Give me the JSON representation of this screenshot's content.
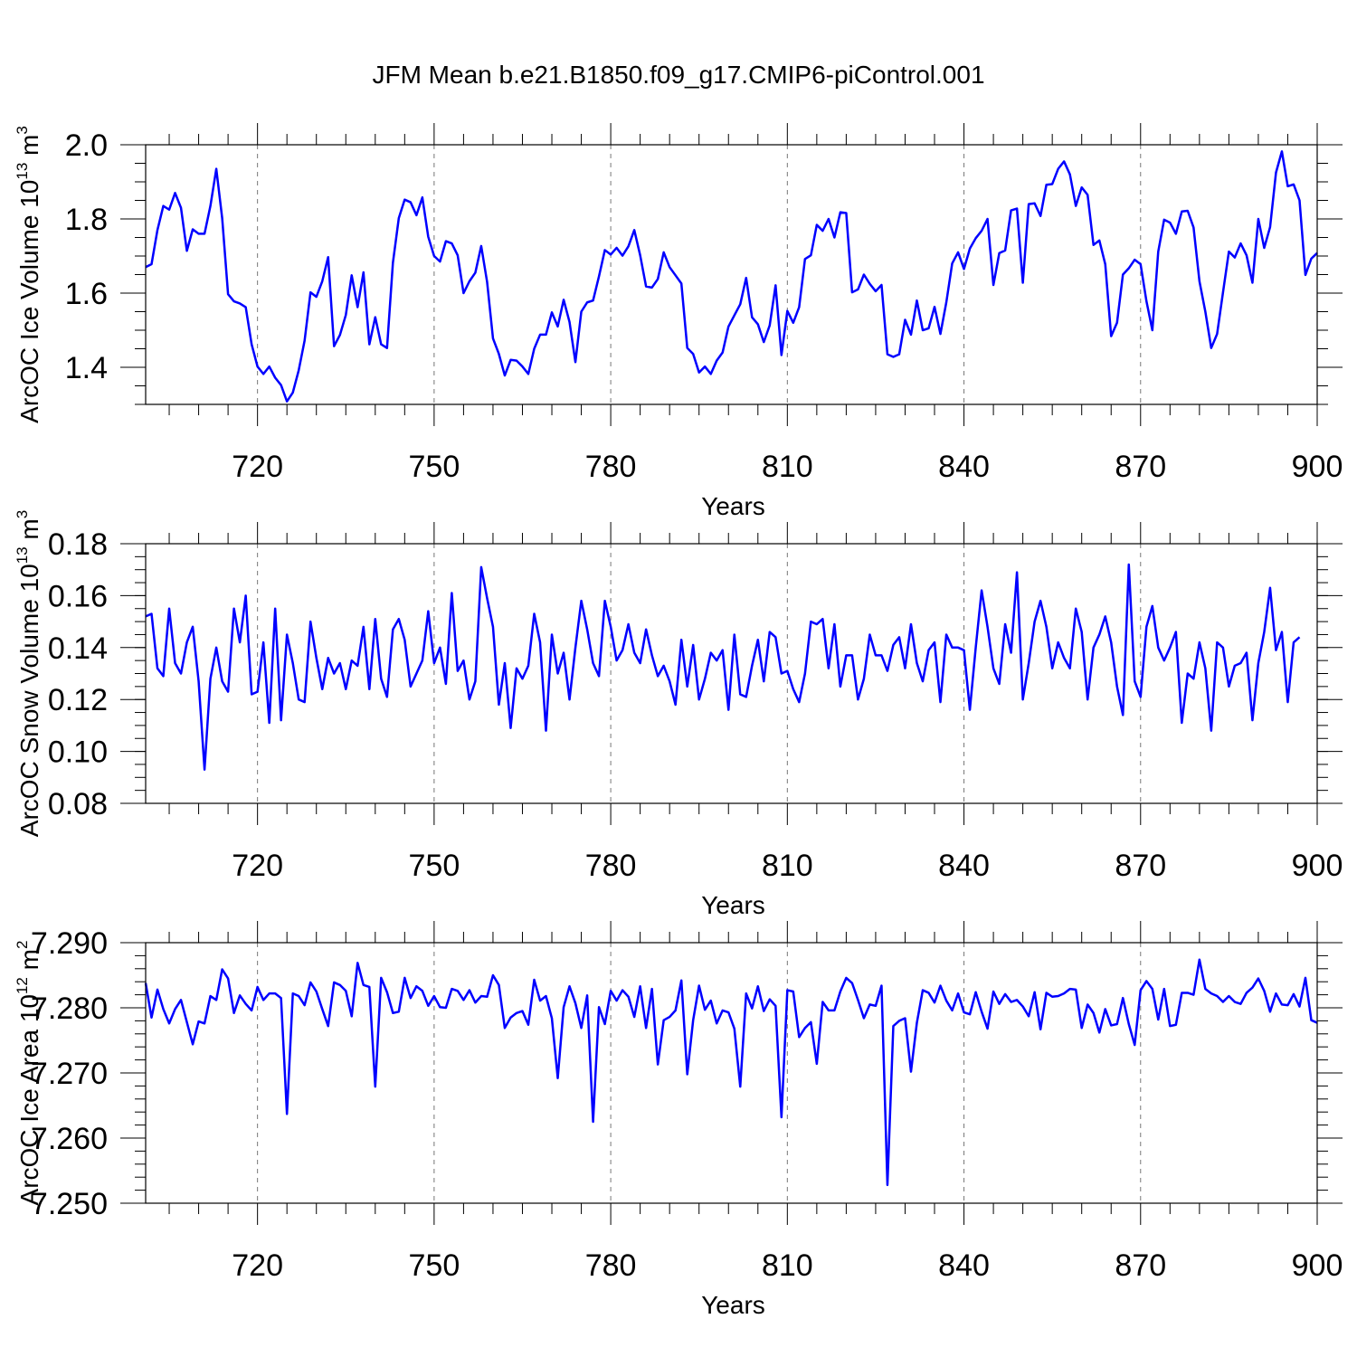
{
  "title": "JFM Mean b.e21.B1850.f09_g17.CMIP6-piControl.001",
  "colors": {
    "line": "#0000ff",
    "axis": "#000000",
    "grid": "#777777"
  },
  "chart_data": [
    {
      "type": "line",
      "xlabel": "Years",
      "ylabel": {
        "main": "ArcOC Ice Volume 10",
        "sup1": "13",
        "unit": " m",
        "sup2": "3"
      },
      "xlim": [
        701,
        900
      ],
      "ylim": [
        1.3,
        2.0
      ],
      "x_ticks": [
        720,
        750,
        780,
        810,
        840,
        870,
        900
      ],
      "x_tick_labels": [
        "720",
        "750",
        "780",
        "810",
        "840",
        "870",
        "900"
      ],
      "y_ticks": [
        1.4,
        1.6,
        1.8,
        2.0
      ],
      "y_tick_labels": [
        "1.4",
        "1.6",
        "1.8",
        "2.0"
      ],
      "y_minor_step": 0.05,
      "x_start": 701,
      "series": [
        {
          "values": [
            1.67,
            1.678,
            1.77,
            1.835,
            1.825,
            1.87,
            1.83,
            1.714,
            1.772,
            1.76,
            1.76,
            1.835,
            1.935,
            1.802,
            1.597,
            1.578,
            1.572,
            1.562,
            1.462,
            1.402,
            1.382,
            1.402,
            1.372,
            1.352,
            1.308,
            1.332,
            1.392,
            1.472,
            1.602,
            1.59,
            1.632,
            1.697,
            1.457,
            1.487,
            1.541,
            1.648,
            1.562,
            1.656,
            1.462,
            1.535,
            1.462,
            1.452,
            1.682,
            1.802,
            1.852,
            1.845,
            1.81,
            1.858,
            1.752,
            1.7,
            1.685,
            1.74,
            1.734,
            1.702,
            1.6,
            1.632,
            1.655,
            1.727,
            1.63,
            1.478,
            1.436,
            1.378,
            1.42,
            1.418,
            1.402,
            1.382,
            1.45,
            1.488,
            1.488,
            1.548,
            1.51,
            1.582,
            1.522,
            1.414,
            1.55,
            1.575,
            1.58,
            1.645,
            1.716,
            1.704,
            1.722,
            1.701,
            1.726,
            1.77,
            1.702,
            1.618,
            1.615,
            1.638,
            1.71,
            1.67,
            1.648,
            1.626,
            1.452,
            1.436,
            1.386,
            1.402,
            1.382,
            1.418,
            1.44,
            1.51,
            1.54,
            1.57,
            1.641,
            1.535,
            1.516,
            1.468,
            1.513,
            1.621,
            1.433,
            1.552,
            1.52,
            1.562,
            1.692,
            1.702,
            1.784,
            1.768,
            1.8,
            1.75,
            1.818,
            1.816,
            1.602,
            1.61,
            1.65,
            1.625,
            1.605,
            1.622,
            1.435,
            1.428,
            1.435,
            1.528,
            1.488,
            1.58,
            1.5,
            1.505,
            1.563,
            1.49,
            1.575,
            1.68,
            1.71,
            1.665,
            1.72,
            1.748,
            1.768,
            1.8,
            1.622,
            1.708,
            1.715,
            1.823,
            1.828,
            1.628,
            1.84,
            1.842,
            1.808,
            1.892,
            1.894,
            1.935,
            1.955,
            1.92,
            1.835,
            1.885,
            1.865,
            1.73,
            1.742,
            1.678,
            1.484,
            1.52,
            1.65,
            1.667,
            1.69,
            1.678,
            1.578,
            1.5,
            1.712,
            1.798,
            1.79,
            1.76,
            1.82,
            1.822,
            1.777,
            1.632,
            1.55,
            1.452,
            1.49,
            1.602,
            1.712,
            1.696,
            1.734,
            1.702,
            1.628,
            1.8,
            1.722,
            1.778,
            1.925,
            1.982,
            1.888,
            1.893,
            1.85,
            1.649,
            1.693,
            1.708
          ]
        }
      ]
    },
    {
      "type": "line",
      "xlabel": "Years",
      "ylabel": {
        "main": "ArcOC Snow Volume 10",
        "sup1": "13",
        "unit": " m",
        "sup2": "3"
      },
      "xlim": [
        701,
        900
      ],
      "ylim": [
        0.08,
        0.18
      ],
      "x_ticks": [
        720,
        750,
        780,
        810,
        840,
        870,
        900
      ],
      "x_tick_labels": [
        "720",
        "750",
        "780",
        "810",
        "840",
        "870",
        "900"
      ],
      "y_ticks": [
        0.08,
        0.1,
        0.12,
        0.14,
        0.16,
        0.18
      ],
      "y_tick_labels": [
        "0.08",
        "0.10",
        "0.12",
        "0.14",
        "0.16",
        "0.18"
      ],
      "y_minor_step": 0.005,
      "x_start": 701,
      "series": [
        {
          "values": [
            0.152,
            0.153,
            0.132,
            0.129,
            0.155,
            0.134,
            0.13,
            0.142,
            0.148,
            0.127,
            0.093,
            0.128,
            0.14,
            0.127,
            0.123,
            0.155,
            0.142,
            0.16,
            0.122,
            0.123,
            0.142,
            0.111,
            0.155,
            0.112,
            0.145,
            0.134,
            0.12,
            0.119,
            0.15,
            0.136,
            0.124,
            0.136,
            0.13,
            0.134,
            0.124,
            0.135,
            0.133,
            0.148,
            0.124,
            0.151,
            0.128,
            0.121,
            0.147,
            0.151,
            0.143,
            0.125,
            0.13,
            0.135,
            0.154,
            0.134,
            0.14,
            0.126,
            0.161,
            0.131,
            0.135,
            0.12,
            0.127,
            0.171,
            0.159,
            0.148,
            0.118,
            0.134,
            0.109,
            0.132,
            0.128,
            0.133,
            0.153,
            0.142,
            0.108,
            0.145,
            0.13,
            0.138,
            0.12,
            0.14,
            0.158,
            0.147,
            0.134,
            0.129,
            0.158,
            0.148,
            0.135,
            0.139,
            0.149,
            0.138,
            0.134,
            0.147,
            0.137,
            0.129,
            0.133,
            0.127,
            0.118,
            0.143,
            0.125,
            0.141,
            0.12,
            0.128,
            0.138,
            0.135,
            0.139,
            0.116,
            0.145,
            0.122,
            0.121,
            0.133,
            0.143,
            0.127,
            0.146,
            0.144,
            0.13,
            0.131,
            0.124,
            0.119,
            0.13,
            0.15,
            0.149,
            0.151,
            0.132,
            0.149,
            0.125,
            0.137,
            0.137,
            0.12,
            0.128,
            0.145,
            0.137,
            0.137,
            0.131,
            0.141,
            0.144,
            0.132,
            0.149,
            0.134,
            0.127,
            0.139,
            0.142,
            0.119,
            0.145,
            0.14,
            0.14,
            0.139,
            0.116,
            0.14,
            0.162,
            0.148,
            0.132,
            0.126,
            0.149,
            0.138,
            0.169,
            0.12,
            0.134,
            0.15,
            0.158,
            0.148,
            0.132,
            0.142,
            0.136,
            0.132,
            0.155,
            0.146,
            0.12,
            0.14,
            0.145,
            0.152,
            0.142,
            0.125,
            0.114,
            0.172,
            0.127,
            0.121,
            0.148,
            0.156,
            0.14,
            0.135,
            0.14,
            0.146,
            0.111,
            0.13,
            0.128,
            0.142,
            0.132,
            0.108,
            0.142,
            0.14,
            0.125,
            0.133,
            0.134,
            0.138,
            0.112,
            0.134,
            0.146,
            0.163,
            0.139,
            0.146,
            0.119,
            0.142,
            0.144
          ]
        }
      ]
    },
    {
      "type": "line",
      "xlabel": "Years",
      "ylabel": {
        "main": "ArcOC Ice Area 10",
        "sup1": "12",
        "unit": " m",
        "sup2": "2"
      },
      "xlim": [
        701,
        900
      ],
      "ylim": [
        7.25,
        7.29
      ],
      "x_ticks": [
        720,
        750,
        780,
        810,
        840,
        870,
        900
      ],
      "x_tick_labels": [
        "720",
        "750",
        "780",
        "810",
        "840",
        "870",
        "900"
      ],
      "y_ticks": [
        7.25,
        7.26,
        7.27,
        7.28,
        7.29
      ],
      "y_tick_labels": [
        "7.250",
        "7.260",
        "7.270",
        "7.280",
        "7.290"
      ],
      "y_minor_step": 0.002,
      "x_start": 701,
      "series": [
        {
          "values": [
            7.2838,
            7.2785,
            7.2828,
            7.2798,
            7.2776,
            7.2798,
            7.2812,
            7.2778,
            7.2744,
            7.2779,
            7.2776,
            7.2818,
            7.2812,
            7.2859,
            7.2845,
            7.2792,
            7.2819,
            7.2806,
            7.2796,
            7.2832,
            7.2812,
            7.2822,
            7.2822,
            7.2815,
            7.2637,
            7.2822,
            7.2818,
            7.2804,
            7.2839,
            7.2825,
            7.2798,
            7.2772,
            7.2839,
            7.2835,
            7.2826,
            7.2787,
            7.2869,
            7.2835,
            7.2832,
            7.2679,
            7.2846,
            7.2824,
            7.2792,
            7.2794,
            7.2846,
            7.2815,
            7.2833,
            7.2826,
            7.2803,
            7.2818,
            7.2801,
            7.28,
            7.2829,
            7.2826,
            7.2812,
            7.2827,
            7.2808,
            7.2818,
            7.2817,
            7.285,
            7.2835,
            7.2769,
            7.2785,
            7.2792,
            7.2795,
            7.2774,
            7.2843,
            7.2811,
            7.2818,
            7.2784,
            7.2692,
            7.2801,
            7.2833,
            7.2807,
            7.2769,
            7.2819,
            7.2625,
            7.2801,
            7.2775,
            7.2826,
            7.2811,
            7.2827,
            7.2817,
            7.2786,
            7.2833,
            7.2769,
            7.2829,
            7.2713,
            7.2781,
            7.2786,
            7.2796,
            7.2842,
            7.2698,
            7.2781,
            7.2834,
            7.2797,
            7.2811,
            7.2776,
            7.2796,
            7.2793,
            7.2768,
            7.2679,
            7.2822,
            7.2799,
            7.2833,
            7.2795,
            7.2813,
            7.2803,
            7.2632,
            7.2827,
            7.2825,
            7.2755,
            7.2769,
            7.2778,
            7.2714,
            7.2809,
            7.2796,
            7.2796,
            7.2825,
            7.2846,
            7.2838,
            7.2812,
            7.2784,
            7.2805,
            7.2803,
            7.2834,
            7.2528,
            7.2772,
            7.278,
            7.2784,
            7.2702,
            7.2777,
            7.2827,
            7.2823,
            7.2808,
            7.2834,
            7.2811,
            7.2796,
            7.2822,
            7.2793,
            7.279,
            7.2824,
            7.2794,
            7.2768,
            7.2825,
            7.2806,
            7.2821,
            7.2809,
            7.2812,
            7.2802,
            7.2787,
            7.2824,
            7.2767,
            7.2823,
            7.2817,
            7.2818,
            7.2822,
            7.2829,
            7.2828,
            7.2769,
            7.2805,
            7.2792,
            7.2762,
            7.2798,
            7.2773,
            7.2775,
            7.2815,
            7.2775,
            7.2743,
            7.2827,
            7.2841,
            7.2829,
            7.2782,
            7.2829,
            7.2772,
            7.2774,
            7.2823,
            7.2823,
            7.282,
            7.2874,
            7.2829,
            7.2822,
            7.2818,
            7.2809,
            7.2818,
            7.2809,
            7.2806,
            7.2823,
            7.2831,
            7.2845,
            7.2826,
            7.2794,
            7.2822,
            7.2805,
            7.2804,
            7.2821,
            7.2802,
            7.2846,
            7.2781,
            7.2777
          ]
        }
      ]
    }
  ]
}
